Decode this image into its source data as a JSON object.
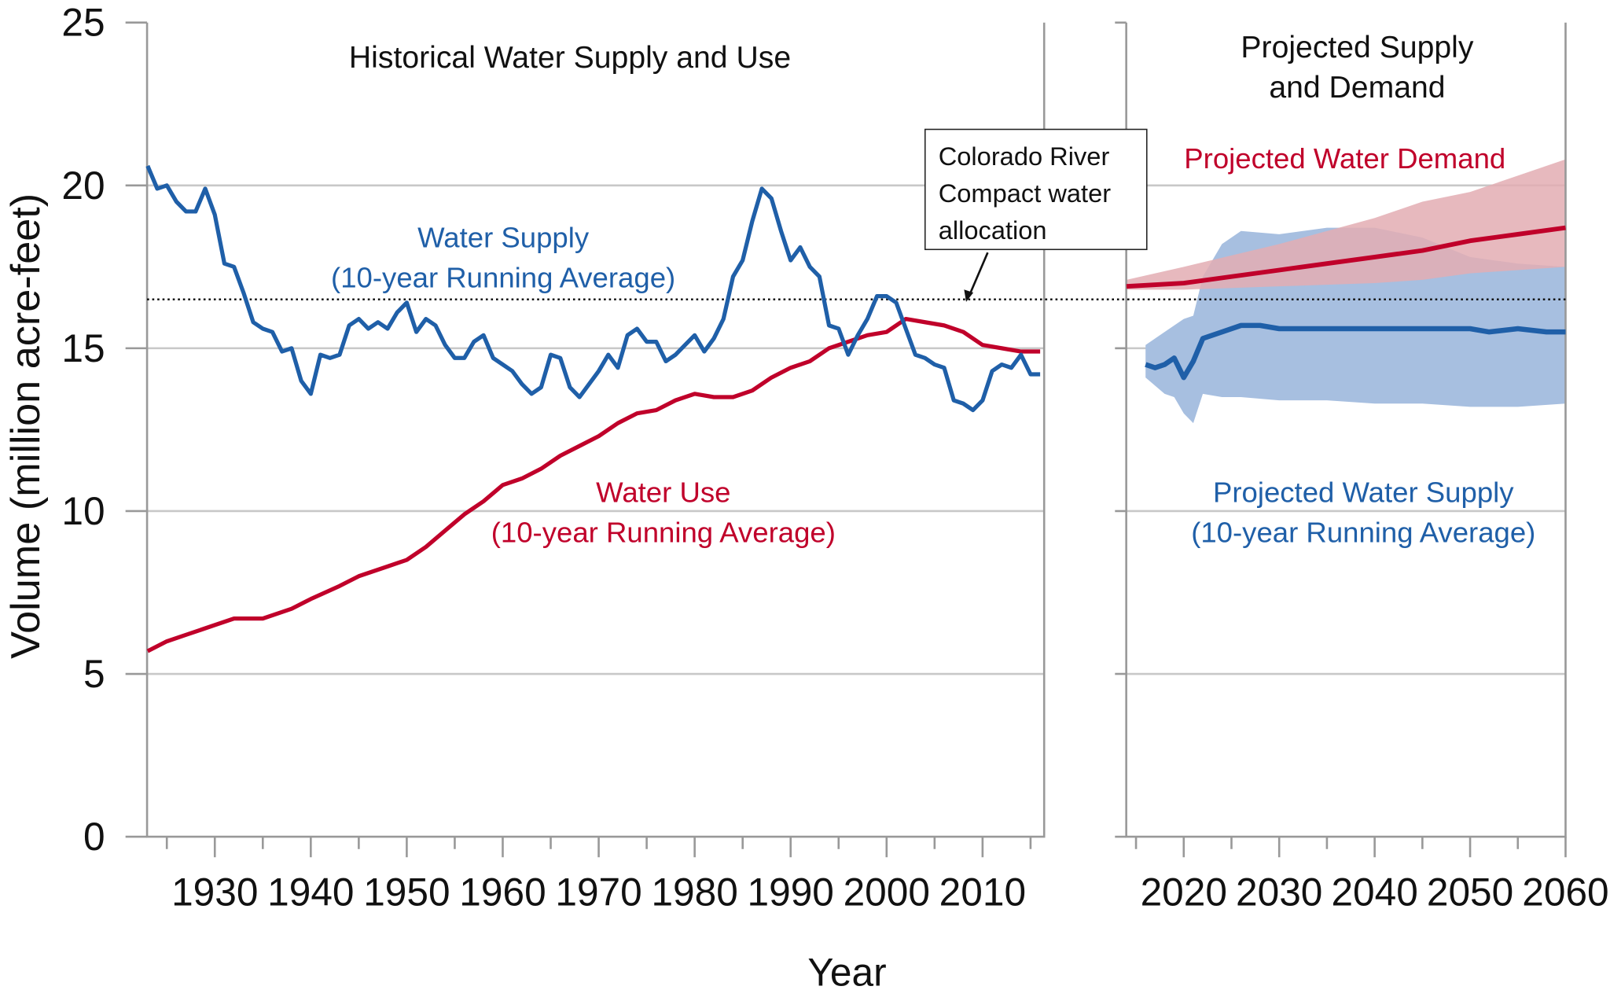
{
  "chart_data": [
    {
      "type": "line",
      "title": "Historical Water Supply and Use",
      "xlabel": "Year",
      "ylabel": "Volume (million acre-feet)",
      "xlim": [
        1923,
        2016.5
      ],
      "ylim": [
        0,
        25
      ],
      "yticks": [
        "0",
        "5",
        "10",
        "15",
        "20",
        "25"
      ],
      "xticks": [
        "1930",
        "1940",
        "1950",
        "1960",
        "1970",
        "1980",
        "1990",
        "2000",
        "2010"
      ],
      "grid": true,
      "series": [
        {
          "name": "Water Supply (10-year Running Average)",
          "label_lines": [
            "Water Supply",
            "(10-year Running Average)"
          ],
          "color": "#1f5fa8",
          "x": [
            1923,
            1924,
            1925,
            1926,
            1927,
            1928,
            1929,
            1930,
            1931,
            1932,
            1933,
            1934,
            1935,
            1936,
            1937,
            1938,
            1939,
            1940,
            1941,
            1942,
            1943,
            1944,
            1945,
            1946,
            1947,
            1948,
            1949,
            1950,
            1951,
            1952,
            1953,
            1954,
            1955,
            1956,
            1957,
            1958,
            1959,
            1960,
            1961,
            1962,
            1963,
            1964,
            1965,
            1966,
            1967,
            1968,
            1969,
            1970,
            1971,
            1972,
            1973,
            1974,
            1975,
            1976,
            1977,
            1978,
            1979,
            1980,
            1981,
            1982,
            1983,
            1984,
            1985,
            1986,
            1987,
            1988,
            1989,
            1990,
            1991,
            1992,
            1993,
            1994,
            1995,
            1996,
            1997,
            1998,
            1999,
            2000,
            2001,
            2002,
            2003,
            2004,
            2005,
            2006,
            2007,
            2008,
            2009,
            2010,
            2011,
            2012,
            2013,
            2014,
            2015,
            2016
          ],
          "y": [
            20.6,
            19.9,
            20.0,
            19.5,
            19.2,
            19.2,
            19.9,
            19.1,
            17.6,
            17.5,
            16.7,
            15.8,
            15.6,
            15.5,
            14.9,
            15.0,
            14.0,
            13.6,
            14.8,
            14.7,
            14.8,
            15.7,
            15.9,
            15.6,
            15.8,
            15.6,
            16.1,
            16.4,
            15.5,
            15.9,
            15.7,
            15.1,
            14.7,
            14.7,
            15.2,
            15.4,
            14.7,
            14.5,
            14.3,
            13.9,
            13.6,
            13.8,
            14.8,
            14.7,
            13.8,
            13.5,
            13.9,
            14.3,
            14.8,
            14.4,
            15.4,
            15.6,
            15.2,
            15.2,
            14.6,
            14.8,
            15.1,
            15.4,
            14.9,
            15.3,
            15.9,
            17.2,
            17.7,
            18.9,
            19.9,
            19.6,
            18.6,
            17.7,
            18.1,
            17.5,
            17.2,
            15.7,
            15.6,
            14.8,
            15.4,
            15.9,
            16.6,
            16.6,
            16.4,
            15.6,
            14.8,
            14.7,
            14.5,
            14.4,
            13.4,
            13.3,
            13.1,
            13.4,
            14.3,
            14.5,
            14.4,
            14.8,
            14.2,
            14.2
          ]
        },
        {
          "name": "Water Use (10-year Running Average)",
          "label_lines": [
            "Water Use",
            "(10-year Running Average)"
          ],
          "color": "#c0002a",
          "x": [
            1923,
            1925,
            1927,
            1930,
            1932,
            1935,
            1938,
            1940,
            1943,
            1945,
            1948,
            1950,
            1952,
            1954,
            1956,
            1958,
            1960,
            1962,
            1964,
            1966,
            1968,
            1970,
            1972,
            1974,
            1976,
            1978,
            1980,
            1982,
            1984,
            1986,
            1988,
            1990,
            1992,
            1994,
            1996,
            1998,
            2000,
            2002,
            2004,
            2006,
            2008,
            2010,
            2012,
            2014,
            2016
          ],
          "y": [
            5.7,
            6.0,
            6.2,
            6.5,
            6.7,
            6.7,
            7.0,
            7.3,
            7.7,
            8.0,
            8.3,
            8.5,
            8.9,
            9.4,
            9.9,
            10.3,
            10.8,
            11.0,
            11.3,
            11.7,
            12.0,
            12.3,
            12.7,
            13.0,
            13.1,
            13.4,
            13.6,
            13.5,
            13.5,
            13.7,
            14.1,
            14.4,
            14.6,
            15.0,
            15.2,
            15.4,
            15.5,
            15.9,
            15.8,
            15.7,
            15.5,
            15.1,
            15.0,
            14.9,
            14.9
          ]
        }
      ],
      "reference_line": {
        "value": 16.5,
        "style": "dotted",
        "annotation_lines": [
          "Colorado River",
          "Compact water",
          "allocation"
        ]
      }
    },
    {
      "type": "area",
      "title_lines": [
        "Projected Supply",
        "and Demand"
      ],
      "xlim": [
        2014,
        2060
      ],
      "ylim": [
        0,
        25
      ],
      "xticks": [
        "2020",
        "2030",
        "2040",
        "2050",
        "2060"
      ],
      "grid": true,
      "series": [
        {
          "name": "Projected Water Demand",
          "label_lines": [
            "Projected Water Demand"
          ],
          "color": "#c0002a",
          "band_color": "#e3adb3",
          "x": [
            2014,
            2020,
            2025,
            2030,
            2035,
            2040,
            2045,
            2050,
            2055,
            2060
          ],
          "y": [
            16.9,
            17.0,
            17.2,
            17.4,
            17.6,
            17.8,
            18.0,
            18.3,
            18.5,
            18.7
          ],
          "band_x": [
            2014,
            2020,
            2030,
            2040,
            2045,
            2050,
            2055,
            2060
          ],
          "band_upper": [
            17.1,
            17.5,
            18.2,
            19.0,
            19.5,
            19.8,
            20.3,
            20.8
          ],
          "band_lower": [
            16.8,
            16.8,
            16.9,
            17.0,
            17.1,
            17.3,
            17.4,
            17.5
          ]
        },
        {
          "name": "Projected Water Supply (10-year Running Average)",
          "label_lines": [
            "Projected Water Supply",
            "(10-year Running Average)"
          ],
          "color": "#1f5fa8",
          "band_color": "#a7bfe0",
          "x": [
            2016,
            2017,
            2018,
            2019,
            2020,
            2021,
            2022,
            2024,
            2026,
            2028,
            2030,
            2035,
            2040,
            2045,
            2050,
            2052,
            2055,
            2058,
            2060
          ],
          "y": [
            14.5,
            14.4,
            14.5,
            14.7,
            14.1,
            14.6,
            15.3,
            15.5,
            15.7,
            15.7,
            15.6,
            15.6,
            15.6,
            15.6,
            15.6,
            15.5,
            15.6,
            15.5,
            15.5
          ],
          "band_x": [
            2016,
            2018,
            2019,
            2020,
            2021,
            2022,
            2024,
            2026,
            2030,
            2035,
            2040,
            2045,
            2050,
            2055,
            2060
          ],
          "band_upper": [
            15.1,
            15.5,
            15.7,
            15.9,
            16.0,
            17.2,
            18.2,
            18.6,
            18.5,
            18.7,
            18.7,
            18.4,
            17.8,
            17.6,
            17.5
          ],
          "band_lower": [
            14.1,
            13.6,
            13.5,
            13.0,
            12.7,
            13.6,
            13.5,
            13.5,
            13.4,
            13.4,
            13.3,
            13.3,
            13.2,
            13.2,
            13.3
          ]
        }
      ]
    }
  ]
}
